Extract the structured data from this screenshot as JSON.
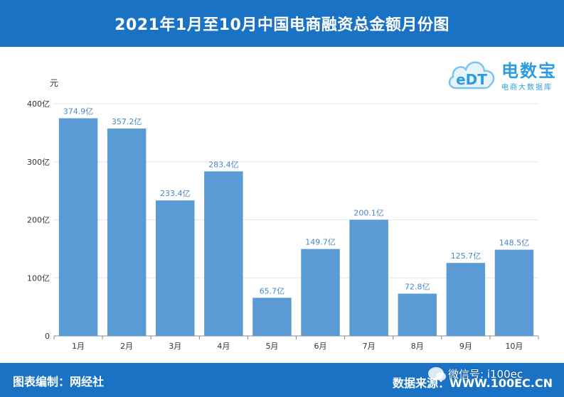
{
  "header": {
    "title": "2021年1月至10月中国电商融资总金额月份图"
  },
  "logo": {
    "badge": "eDT",
    "brand": "电数宝",
    "sub": "电商大数据库"
  },
  "footer": {
    "left": "图表编制：网经社",
    "right": "数据来源：WWW.100EC.CN",
    "wechat": "微信号: i100ec"
  },
  "chart_data": {
    "type": "bar",
    "title": "2021年1月至10月中国电商融资总金额月份图",
    "ylabel": "元",
    "xlabel": "",
    "categories": [
      "1月",
      "2月",
      "3月",
      "4月",
      "5月",
      "6月",
      "7月",
      "8月",
      "9月",
      "10月"
    ],
    "values": [
      374.9,
      357.2,
      233.4,
      283.4,
      65.7,
      149.7,
      200.1,
      72.8,
      125.7,
      148.5
    ],
    "value_labels": [
      "374.9亿",
      "357.2亿",
      "233.4亿",
      "283.4亿",
      "65.7亿",
      "149.7亿",
      "200.1亿",
      "72.8亿",
      "125.7亿",
      "148.5亿"
    ],
    "yticks": [
      0,
      100,
      200,
      300,
      400
    ],
    "ytick_labels": [
      "0",
      "100亿",
      "200亿",
      "300亿",
      "400亿"
    ],
    "ylim": [
      0,
      400
    ],
    "grid": true,
    "bar_color": "#5b9bd5"
  }
}
